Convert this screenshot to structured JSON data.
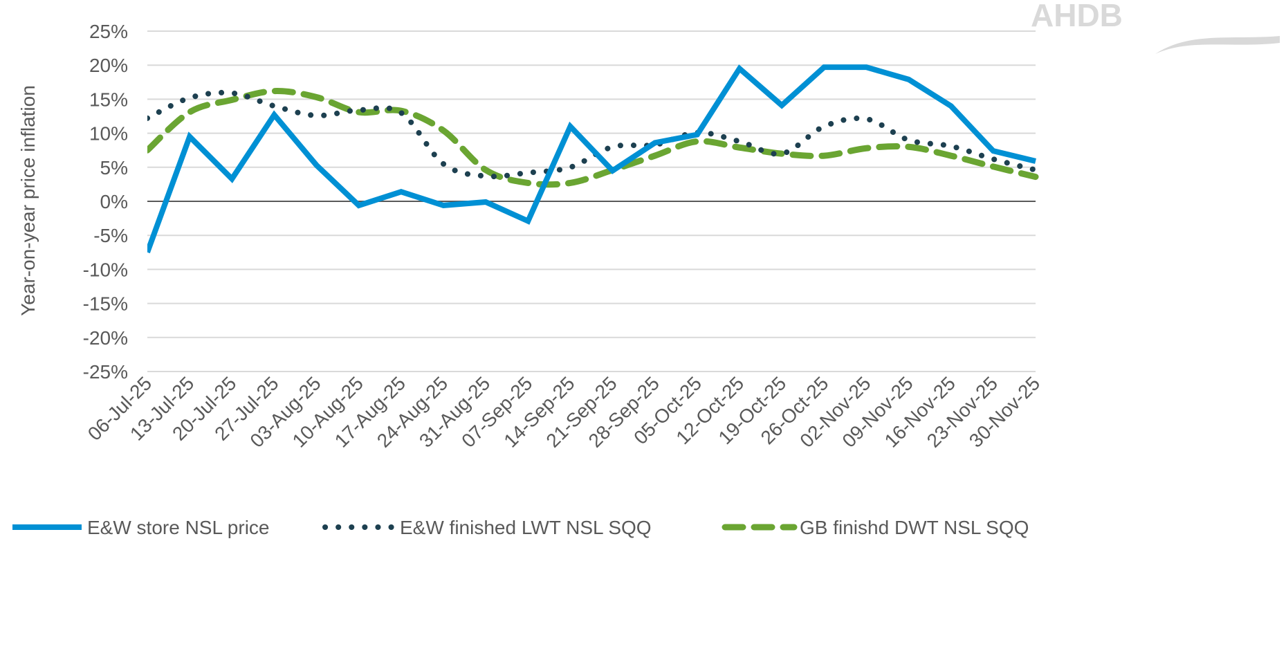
{
  "logo": {
    "text": "AHDB",
    "color": "#D9D9D9"
  },
  "chart_data": {
    "type": "line",
    "title": "",
    "xlabel": "",
    "ylabel": "Year-on-year price inflation",
    "ylim": [
      -25,
      25
    ],
    "ytick_step": 5,
    "yticks": [
      "25%",
      "20%",
      "15%",
      "10%",
      "5%",
      "0%",
      "-5%",
      "-10%",
      "-15%",
      "-20%",
      "-25%"
    ],
    "grid": true,
    "legend_position": "bottom",
    "categories": [
      "06-Jul-25",
      "13-Jul-25",
      "20-Jul-25",
      "27-Jul-25",
      "03-Aug-25",
      "10-Aug-25",
      "17-Aug-25",
      "24-Aug-25",
      "31-Aug-25",
      "07-Sep-25",
      "14-Sep-25",
      "21-Sep-25",
      "28-Sep-25",
      "05-Oct-25",
      "12-Oct-25",
      "19-Oct-25",
      "26-Oct-25",
      "02-Nov-25",
      "09-Nov-25",
      "16-Nov-25",
      "23-Nov-25",
      "30-Nov-25"
    ],
    "series": [
      {
        "name": "E&W store NSL price",
        "color": "#0090D4",
        "style": "solid",
        "smooth": false,
        "values": [
          -7.5,
          9.5,
          3.3,
          12.7,
          5.3,
          -0.6,
          1.4,
          -0.6,
          -0.1,
          -2.9,
          11.0,
          4.5,
          8.6,
          9.8,
          19.5,
          14.1,
          19.7,
          19.7,
          17.9,
          14.0,
          7.4,
          5.9
        ]
      },
      {
        "name": "E&W finished LWT NSL SQQ",
        "color": "#1D4050",
        "style": "dotted",
        "smooth": true,
        "values": [
          12.2,
          15.2,
          15.9,
          14.0,
          12.6,
          13.4,
          13.0,
          5.5,
          3.7,
          4.2,
          5.0,
          8.0,
          8.3,
          10.1,
          8.8,
          7.0,
          11.0,
          12.1,
          9.0,
          8.1,
          6.2,
          4.6
        ]
      },
      {
        "name": "GB finishd DWT NSL SQQ",
        "color": "#6AA532",
        "style": "dashed",
        "smooth": true,
        "values": [
          7.5,
          13.1,
          14.9,
          16.2,
          15.3,
          13.1,
          13.3,
          10.4,
          4.6,
          2.7,
          2.7,
          4.6,
          6.7,
          8.8,
          7.9,
          7.0,
          6.7,
          7.8,
          8.0,
          6.7,
          5.1,
          3.6
        ]
      }
    ]
  }
}
